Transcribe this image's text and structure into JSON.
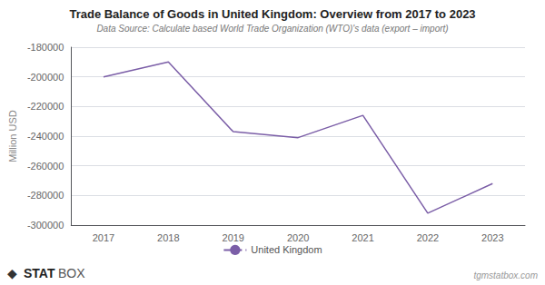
{
  "chart_data": {
    "type": "line",
    "title": "Trade Balance of Goods in United Kingdom: Overview from 2017 to 2023",
    "subtitle": "Data Source: Calculate based World Trade Organization (WTO)'s data (export – import)",
    "y_label": "Million USD",
    "categories": [
      "2017",
      "2018",
      "2019",
      "2020",
      "2021",
      "2022",
      "2023"
    ],
    "series": [
      {
        "name": "United Kingdom",
        "color": "#7B5EA7",
        "line_style": "solid",
        "values": [
          -200000,
          -190000,
          -237000,
          -241000,
          -226000,
          -292000,
          -272000
        ]
      }
    ],
    "ylim": [
      -300000,
      -180000
    ],
    "yticks": [
      -300000,
      -280000,
      -260000,
      -240000,
      -220000,
      -200000,
      -180000
    ],
    "grid": true,
    "legend": "bottom",
    "annotations": [
      "◆",
      "STAT",
      "BOX",
      "tgmstatbox.com"
    ]
  }
}
